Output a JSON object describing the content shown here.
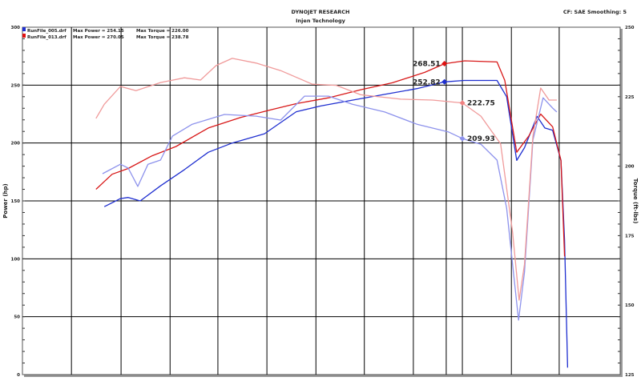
{
  "header": {
    "title": "DYNOJET RESEARCH",
    "subtitle": "Injen Technology",
    "settings": "CF: SAE  Smoothing: 5"
  },
  "legend": [
    {
      "file": "RunFile_005.drf",
      "power": "Max Power = 254.15",
      "torque": "Max Torque = 226.00",
      "color": "#1f2fd0"
    },
    {
      "file": "RunFile_013.drf",
      "power": "Max Power = 270.05",
      "torque": "Max Torque = 238.78",
      "color": "#e01010"
    }
  ],
  "chart_data": {
    "type": "line",
    "title": "DYNOJET RESEARCH",
    "subtitle": "Injen Technology",
    "xlabel": "",
    "ylabel": "Power (hp)",
    "y2label": "Torque (ft-lbs)",
    "xlim": [
      0,
      100
    ],
    "ylim": [
      0,
      300
    ],
    "y2lim": [
      125,
      250
    ],
    "yticks": [
      "0",
      "50",
      "100",
      "150",
      "200",
      "250",
      "300"
    ],
    "y2ticks": [
      "125",
      "150",
      "175",
      "200",
      "225",
      "250"
    ],
    "grid": true,
    "x_gridlines": [
      8.2,
      16.5,
      24.7,
      32.7,
      40.9,
      49.1,
      57.2,
      65.4,
      70.9,
      73.6,
      81.8,
      89.8
    ],
    "legend_position": "top-left",
    "series": [
      {
        "name": "RunFile_005.drf",
        "axis": "power",
        "color": "#1f2fd0",
        "x": [
          13.7,
          16.4,
          17.7,
          19.7,
          23.1,
          27.1,
          31.1,
          35.1,
          40.5,
          45.8,
          49.9,
          55.2,
          60.6,
          66.0,
          70.6,
          73.9,
          79.4,
          81.0,
          82.7,
          84.0,
          86.1,
          87.4,
          88.7,
          90.1,
          90.7,
          91.2
        ],
        "y": [
          145,
          152,
          153,
          150,
          163,
          177,
          192,
          200,
          208,
          227,
          232,
          237,
          242,
          247,
          252.82,
          254,
          254,
          240,
          185,
          196,
          223,
          213,
          211,
          185,
          116,
          6
        ]
      },
      {
        "name": "RunFile_013.drf",
        "axis": "power",
        "color": "#d81818",
        "x": [
          12.3,
          15.0,
          17.7,
          21.7,
          25.7,
          31.1,
          36.5,
          41.8,
          45.8,
          51.2,
          56.6,
          61.9,
          67.3,
          70.6,
          74.0,
          79.4,
          80.7,
          82.7,
          84.7,
          86.7,
          88.7,
          90.1,
          90.7
        ],
        "y": [
          160,
          173,
          178,
          189,
          197,
          213,
          222,
          229,
          234,
          239,
          246,
          252,
          261,
          268.51,
          271,
          270,
          254,
          192,
          206,
          225,
          214,
          185,
          102
        ]
      },
      {
        "name": "RunFile_005.drf",
        "axis": "torque",
        "color": "#8d92ec",
        "x": [
          13.4,
          16.4,
          17.7,
          19.3,
          21.0,
          23.1,
          25.1,
          28.4,
          33.8,
          39.1,
          43.2,
          47.2,
          51.2,
          55.2,
          60.6,
          66.0,
          71.3,
          73.6,
          76.7,
          79.4,
          81.0,
          82.0,
          83.0,
          84.0,
          85.4,
          87.1,
          88.7,
          89.4
        ],
        "y": [
          197.3,
          200.7,
          199.3,
          192.7,
          200.7,
          202.2,
          210.8,
          215.1,
          218.6,
          218,
          216.6,
          225.2,
          225.2,
          222.3,
          219.5,
          215.1,
          212.3,
          209.93,
          207.9,
          202.2,
          184.9,
          164.7,
          144.6,
          161.9,
          209.4,
          224.6,
          220.9,
          219.5
        ]
      },
      {
        "name": "RunFile_013.drf",
        "axis": "torque",
        "color": "#f09a9a",
        "x": [
          12.3,
          13.7,
          16.4,
          19.0,
          23.1,
          27.1,
          29.8,
          32.4,
          35.1,
          39.1,
          43.2,
          48.5,
          52.5,
          56.6,
          63.3,
          68.6,
          73.6,
          76.7,
          80.0,
          82.0,
          83.1,
          84.0,
          85.4,
          86.7,
          88.1,
          89.4
        ],
        "y": [
          217.2,
          222.3,
          228.7,
          227.2,
          230.1,
          231.8,
          231.0,
          236.2,
          238.8,
          237.1,
          234.4,
          229.5,
          229.1,
          225.7,
          224.1,
          223.8,
          222.75,
          218,
          208,
          176.3,
          151.8,
          164.7,
          210.8,
          228.1,
          223.8,
          223.8
        ]
      }
    ],
    "annotations": [
      {
        "label": "268.51",
        "x": 70.6,
        "y": 268.51,
        "axis": "power",
        "color": "#e01010"
      },
      {
        "label": "252.82",
        "x": 70.6,
        "y": 252.82,
        "axis": "power",
        "color": "#1f2fd0"
      },
      {
        "label": "222.75",
        "x": 73.6,
        "y": 222.75,
        "axis": "torque",
        "color": "#f08080"
      },
      {
        "label": "209.93",
        "x": 73.6,
        "y": 209.93,
        "axis": "torque",
        "color": "#8d92ec"
      }
    ]
  }
}
